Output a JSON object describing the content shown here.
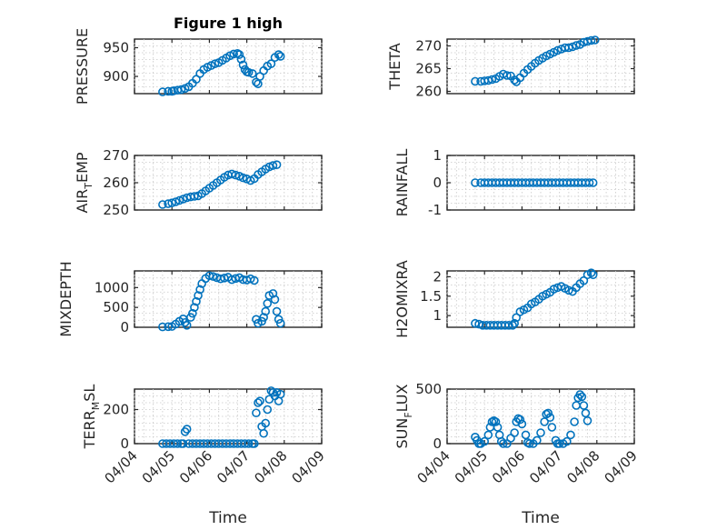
{
  "chart_data": {
    "type": "scatter",
    "title": "Figure 1 high",
    "xlabel": "Time",
    "x_tick_labels": [
      "04/04",
      "04/05",
      "04/06",
      "04/07",
      "04/08",
      "04/09"
    ],
    "x_range_days": [
      0,
      5
    ],
    "marker_color": "#0072bd",
    "panels": [
      {
        "name": "pressure",
        "ylabel": "PRESSURE",
        "ylim": [
          870,
          965
        ],
        "yticks": [
          900,
          950
        ],
        "series": [
          [
            0.75,
            873
          ],
          [
            0.9,
            874
          ],
          [
            1.0,
            874
          ],
          [
            1.05,
            875
          ],
          [
            1.15,
            876
          ],
          [
            1.25,
            877
          ],
          [
            1.35,
            879
          ],
          [
            1.45,
            882
          ],
          [
            1.55,
            888
          ],
          [
            1.65,
            895
          ],
          [
            1.75,
            905
          ],
          [
            1.85,
            912
          ],
          [
            1.95,
            916
          ],
          [
            2.05,
            919
          ],
          [
            2.15,
            922
          ],
          [
            2.25,
            924
          ],
          [
            2.35,
            928
          ],
          [
            2.45,
            932
          ],
          [
            2.55,
            936
          ],
          [
            2.65,
            939
          ],
          [
            2.75,
            940
          ],
          [
            2.8,
            938
          ],
          [
            2.85,
            930
          ],
          [
            2.9,
            920
          ],
          [
            2.95,
            912
          ],
          [
            3.0,
            908
          ],
          [
            3.05,
            907
          ],
          [
            3.15,
            905
          ],
          [
            3.25,
            890
          ],
          [
            3.3,
            887
          ],
          [
            3.35,
            900
          ],
          [
            3.45,
            910
          ],
          [
            3.55,
            918
          ],
          [
            3.65,
            922
          ],
          [
            3.75,
            933
          ],
          [
            3.85,
            938
          ],
          [
            3.9,
            935
          ]
        ]
      },
      {
        "name": "theta",
        "ylabel": "THETA",
        "ylim": [
          259.5,
          271.5
        ],
        "yticks": [
          260,
          265,
          270
        ],
        "series": [
          [
            0.75,
            262.2
          ],
          [
            0.9,
            262.2
          ],
          [
            1.0,
            262.3
          ],
          [
            1.1,
            262.4
          ],
          [
            1.2,
            262.6
          ],
          [
            1.3,
            262.8
          ],
          [
            1.4,
            263.3
          ],
          [
            1.5,
            263.8
          ],
          [
            1.6,
            263.5
          ],
          [
            1.7,
            263.4
          ],
          [
            1.8,
            262.5
          ],
          [
            1.85,
            262.1
          ],
          [
            1.95,
            263.0
          ],
          [
            2.05,
            264.0
          ],
          [
            2.15,
            264.8
          ],
          [
            2.25,
            265.5
          ],
          [
            2.35,
            266.2
          ],
          [
            2.45,
            266.8
          ],
          [
            2.55,
            267.3
          ],
          [
            2.65,
            267.8
          ],
          [
            2.75,
            268.2
          ],
          [
            2.85,
            268.6
          ],
          [
            2.95,
            269.0
          ],
          [
            3.05,
            269.3
          ],
          [
            3.15,
            269.6
          ],
          [
            3.25,
            269.6
          ],
          [
            3.35,
            269.8
          ],
          [
            3.45,
            270.1
          ],
          [
            3.55,
            270.3
          ],
          [
            3.65,
            270.8
          ],
          [
            3.75,
            271.0
          ],
          [
            3.85,
            271.2
          ],
          [
            3.95,
            271.3
          ]
        ]
      },
      {
        "name": "air-temp",
        "ylabel": "AIR",
        "ylabel_sub": "T",
        "ylabel_rest": "EMP",
        "ylim": [
          250,
          270
        ],
        "yticks": [
          250,
          260,
          270
        ],
        "series": [
          [
            0.75,
            252
          ],
          [
            0.9,
            252.3
          ],
          [
            1.0,
            252.6
          ],
          [
            1.1,
            253
          ],
          [
            1.2,
            253.5
          ],
          [
            1.3,
            254
          ],
          [
            1.4,
            254.5
          ],
          [
            1.5,
            254.8
          ],
          [
            1.6,
            255
          ],
          [
            1.7,
            255.2
          ],
          [
            1.8,
            256
          ],
          [
            1.9,
            257
          ],
          [
            2.0,
            258
          ],
          [
            2.1,
            259
          ],
          [
            2.2,
            260
          ],
          [
            2.3,
            261
          ],
          [
            2.4,
            262
          ],
          [
            2.5,
            262.8
          ],
          [
            2.6,
            263.2
          ],
          [
            2.7,
            262.8
          ],
          [
            2.8,
            262.4
          ],
          [
            2.9,
            261.8
          ],
          [
            3.0,
            261.4
          ],
          [
            3.1,
            260.8
          ],
          [
            3.2,
            261.5
          ],
          [
            3.3,
            263
          ],
          [
            3.4,
            264
          ],
          [
            3.5,
            265
          ],
          [
            3.6,
            265.8
          ],
          [
            3.7,
            266.3
          ],
          [
            3.8,
            266.6
          ]
        ]
      },
      {
        "name": "rainfall",
        "ylabel": "RAINFALL",
        "ylim": [
          -1,
          1
        ],
        "yticks": [
          -1,
          0,
          1
        ],
        "series": [
          [
            0.75,
            0
          ],
          [
            0.9,
            0
          ],
          [
            1.0,
            0
          ],
          [
            1.1,
            0
          ],
          [
            1.2,
            0
          ],
          [
            1.3,
            0
          ],
          [
            1.4,
            0
          ],
          [
            1.5,
            0
          ],
          [
            1.6,
            0
          ],
          [
            1.7,
            0
          ],
          [
            1.8,
            0
          ],
          [
            1.9,
            0
          ],
          [
            2.0,
            0
          ],
          [
            2.1,
            0
          ],
          [
            2.2,
            0
          ],
          [
            2.3,
            0
          ],
          [
            2.4,
            0
          ],
          [
            2.5,
            0
          ],
          [
            2.6,
            0
          ],
          [
            2.7,
            0
          ],
          [
            2.8,
            0
          ],
          [
            2.9,
            0
          ],
          [
            3.0,
            0
          ],
          [
            3.1,
            0
          ],
          [
            3.2,
            0
          ],
          [
            3.3,
            0
          ],
          [
            3.4,
            0
          ],
          [
            3.5,
            0
          ],
          [
            3.6,
            0
          ],
          [
            3.7,
            0
          ],
          [
            3.8,
            0
          ],
          [
            3.9,
            0
          ]
        ]
      },
      {
        "name": "mixdepth",
        "ylabel": "MIXDEPTH",
        "ylim": [
          0,
          1420
        ],
        "yticks": [
          0,
          500,
          1000
        ],
        "series": [
          [
            0.75,
            10
          ],
          [
            0.9,
            15
          ],
          [
            1.0,
            20
          ],
          [
            1.1,
            80
          ],
          [
            1.2,
            150
          ],
          [
            1.3,
            210
          ],
          [
            1.35,
            120
          ],
          [
            1.4,
            50
          ],
          [
            1.5,
            250
          ],
          [
            1.55,
            350
          ],
          [
            1.6,
            500
          ],
          [
            1.65,
            650
          ],
          [
            1.7,
            800
          ],
          [
            1.75,
            950
          ],
          [
            1.8,
            1100
          ],
          [
            1.9,
            1230
          ],
          [
            2.0,
            1300
          ],
          [
            2.1,
            1280
          ],
          [
            2.2,
            1250
          ],
          [
            2.3,
            1220
          ],
          [
            2.4,
            1240
          ],
          [
            2.5,
            1260
          ],
          [
            2.6,
            1200
          ],
          [
            2.7,
            1230
          ],
          [
            2.8,
            1250
          ],
          [
            2.9,
            1200
          ],
          [
            3.0,
            1190
          ],
          [
            3.1,
            1220
          ],
          [
            3.2,
            1180
          ],
          [
            3.25,
            200
          ],
          [
            3.3,
            100
          ],
          [
            3.4,
            150
          ],
          [
            3.45,
            250
          ],
          [
            3.5,
            400
          ],
          [
            3.55,
            600
          ],
          [
            3.6,
            800
          ],
          [
            3.7,
            850
          ],
          [
            3.75,
            700
          ],
          [
            3.8,
            400
          ],
          [
            3.85,
            200
          ],
          [
            3.9,
            100
          ]
        ]
      },
      {
        "name": "h2omixra",
        "ylabel": "H2OMIXRA",
        "ylim": [
          0.7,
          2.15
        ],
        "yticks": [
          1,
          1.5,
          2
        ],
        "series": [
          [
            0.75,
            0.8
          ],
          [
            0.85,
            0.78
          ],
          [
            0.95,
            0.75
          ],
          [
            1.05,
            0.75
          ],
          [
            1.15,
            0.75
          ],
          [
            1.25,
            0.75
          ],
          [
            1.35,
            0.75
          ],
          [
            1.45,
            0.75
          ],
          [
            1.55,
            0.75
          ],
          [
            1.65,
            0.75
          ],
          [
            1.75,
            0.75
          ],
          [
            1.8,
            0.8
          ],
          [
            1.85,
            0.95
          ],
          [
            1.95,
            1.1
          ],
          [
            2.05,
            1.15
          ],
          [
            2.15,
            1.2
          ],
          [
            2.25,
            1.3
          ],
          [
            2.35,
            1.35
          ],
          [
            2.45,
            1.42
          ],
          [
            2.55,
            1.5
          ],
          [
            2.65,
            1.55
          ],
          [
            2.75,
            1.6
          ],
          [
            2.85,
            1.68
          ],
          [
            2.95,
            1.72
          ],
          [
            3.05,
            1.75
          ],
          [
            3.15,
            1.7
          ],
          [
            3.25,
            1.65
          ],
          [
            3.35,
            1.62
          ],
          [
            3.45,
            1.72
          ],
          [
            3.55,
            1.82
          ],
          [
            3.65,
            1.9
          ],
          [
            3.75,
            2.05
          ],
          [
            3.85,
            2.1
          ],
          [
            3.9,
            2.05
          ]
        ]
      },
      {
        "name": "terr-msl",
        "ylabel": "TERR",
        "ylabel_sub": "M",
        "ylabel_rest": "SL",
        "ylim": [
          0,
          320
        ],
        "yticks": [
          0,
          200
        ],
        "series": [
          [
            0.75,
            0
          ],
          [
            0.85,
            0
          ],
          [
            0.95,
            0
          ],
          [
            1.05,
            0
          ],
          [
            1.15,
            0
          ],
          [
            1.25,
            0
          ],
          [
            1.3,
            0
          ],
          [
            1.35,
            70
          ],
          [
            1.4,
            85
          ],
          [
            1.45,
            0
          ],
          [
            1.55,
            0
          ],
          [
            1.65,
            0
          ],
          [
            1.75,
            0
          ],
          [
            1.85,
            0
          ],
          [
            1.95,
            0
          ],
          [
            2.05,
            0
          ],
          [
            2.15,
            0
          ],
          [
            2.25,
            0
          ],
          [
            2.35,
            0
          ],
          [
            2.45,
            0
          ],
          [
            2.55,
            0
          ],
          [
            2.65,
            0
          ],
          [
            2.75,
            0
          ],
          [
            2.85,
            0
          ],
          [
            2.95,
            0
          ],
          [
            3.05,
            0
          ],
          [
            3.15,
            0
          ],
          [
            3.2,
            0
          ],
          [
            3.25,
            180
          ],
          [
            3.3,
            240
          ],
          [
            3.35,
            250
          ],
          [
            3.4,
            100
          ],
          [
            3.45,
            60
          ],
          [
            3.5,
            120
          ],
          [
            3.55,
            200
          ],
          [
            3.6,
            260
          ],
          [
            3.65,
            310
          ],
          [
            3.7,
            300
          ],
          [
            3.75,
            280
          ],
          [
            3.8,
            300
          ],
          [
            3.85,
            250
          ],
          [
            3.9,
            290
          ]
        ]
      },
      {
        "name": "sun-flux",
        "ylabel": "SUN",
        "ylabel_sub": "F",
        "ylabel_rest": "LUX",
        "ylim": [
          0,
          500
        ],
        "yticks": [
          0,
          500
        ],
        "series": [
          [
            0.75,
            60
          ],
          [
            0.8,
            30
          ],
          [
            0.85,
            0
          ],
          [
            0.9,
            0
          ],
          [
            1.0,
            20
          ],
          [
            1.1,
            80
          ],
          [
            1.15,
            150
          ],
          [
            1.2,
            200
          ],
          [
            1.25,
            210
          ],
          [
            1.3,
            200
          ],
          [
            1.35,
            150
          ],
          [
            1.4,
            80
          ],
          [
            1.45,
            20
          ],
          [
            1.5,
            0
          ],
          [
            1.6,
            0
          ],
          [
            1.7,
            50
          ],
          [
            1.8,
            100
          ],
          [
            1.85,
            200
          ],
          [
            1.9,
            230
          ],
          [
            1.95,
            220
          ],
          [
            2.0,
            180
          ],
          [
            2.1,
            80
          ],
          [
            2.15,
            10
          ],
          [
            2.2,
            0
          ],
          [
            2.3,
            0
          ],
          [
            2.4,
            30
          ],
          [
            2.5,
            100
          ],
          [
            2.6,
            200
          ],
          [
            2.65,
            270
          ],
          [
            2.7,
            280
          ],
          [
            2.75,
            240
          ],
          [
            2.8,
            150
          ],
          [
            2.9,
            30
          ],
          [
            2.95,
            0
          ],
          [
            3.0,
            0
          ],
          [
            3.1,
            0
          ],
          [
            3.2,
            20
          ],
          [
            3.3,
            80
          ],
          [
            3.4,
            200
          ],
          [
            3.45,
            350
          ],
          [
            3.5,
            420
          ],
          [
            3.55,
            450
          ],
          [
            3.6,
            430
          ],
          [
            3.65,
            350
          ],
          [
            3.7,
            280
          ],
          [
            3.75,
            210
          ]
        ]
      }
    ]
  }
}
